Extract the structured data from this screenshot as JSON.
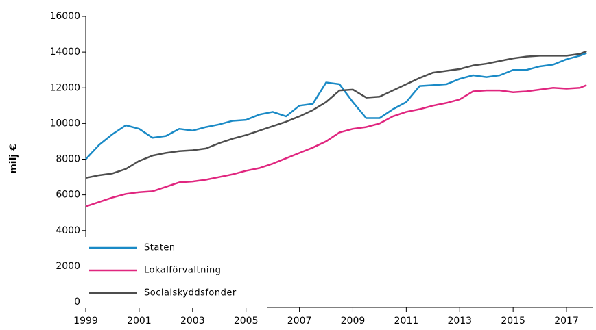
{
  "chart_data": {
    "type": "line",
    "y_label": "milj €",
    "x": [
      1999,
      1999.5,
      2000,
      2000.5,
      2001,
      2001.5,
      2002,
      2002.5,
      2003,
      2003.5,
      2004,
      2004.5,
      2005,
      2005.5,
      2006,
      2006.5,
      2007,
      2007.5,
      2008,
      2008.5,
      2009,
      2009.5,
      2010,
      2010.5,
      2011,
      2011.5,
      2012,
      2012.5,
      2013,
      2013.5,
      2014,
      2014.5,
      2015,
      2015.5,
      2016,
      2016.5,
      2017,
      2017.5,
      2017.75
    ],
    "series": [
      {
        "name": "Staten",
        "color": "#1a8ac6",
        "values": [
          8000,
          8800,
          9400,
          9900,
          9700,
          9200,
          9300,
          9700,
          9600,
          9800,
          9950,
          10150,
          10200,
          10500,
          10650,
          10400,
          11000,
          11100,
          12300,
          12200,
          11200,
          10300,
          10300,
          10800,
          11200,
          12100,
          12150,
          12200,
          12500,
          12700,
          12600,
          12700,
          13000,
          13000,
          13200,
          13300,
          13600,
          13800,
          13950
        ]
      },
      {
        "name": "Lokalförvaltning",
        "color": "#e0267f",
        "values": [
          5350,
          5600,
          5850,
          6050,
          6150,
          6200,
          6450,
          6700,
          6750,
          6850,
          7000,
          7150,
          7350,
          7500,
          7750,
          8050,
          8350,
          8650,
          9000,
          9500,
          9700,
          9800,
          10000,
          10400,
          10650,
          10800,
          11000,
          11150,
          11350,
          11800,
          11850,
          11850,
          11750,
          11800,
          11900,
          12000,
          11950,
          12000,
          12150
        ]
      },
      {
        "name": "Socialskyddsfonder",
        "color": "#4d4d4d",
        "values": [
          6950,
          7100,
          7200,
          7450,
          7900,
          8200,
          8350,
          8450,
          8500,
          8600,
          8900,
          9150,
          9350,
          9600,
          9850,
          10100,
          10400,
          10750,
          11200,
          11850,
          11900,
          11450,
          11500,
          11850,
          12200,
          12550,
          12850,
          12950,
          13050,
          13250,
          13350,
          13500,
          13650,
          13750,
          13800,
          13800,
          13800,
          13900,
          14050
        ]
      }
    ],
    "xlim": [
      1999,
      2018
    ],
    "xticks": [
      1999,
      2001,
      2003,
      2005,
      2007,
      2009,
      2011,
      2013,
      2015,
      2017
    ],
    "ylim": [
      0,
      16000
    ],
    "yticks": [
      0,
      2000,
      4000,
      6000,
      8000,
      10000,
      12000,
      14000,
      16000
    ],
    "legend": "lower left"
  }
}
